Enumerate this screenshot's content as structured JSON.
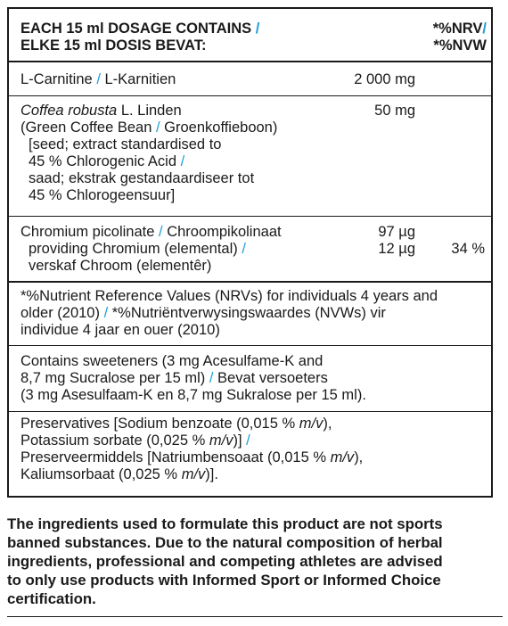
{
  "header": {
    "line1": "EACH 15 ml DOSAGE CONTAINS",
    "line2": "ELKE 15 ml DOSIS BEVAT:",
    "nrv": "*%NRV",
    "nvw": "*%NVW",
    "slash": "/"
  },
  "carnitine": {
    "en": "L-Carnitine",
    "af": "L-Karnitien",
    "amount": "2 000 mg"
  },
  "coffee": {
    "name_italic": "Coffea robusta",
    "name_rest": " L. Linden",
    "line2_en": "(Green Coffee Bean",
    "line2_af": "Groenkoffieboon)",
    "line3": "[seed; extract standardised to",
    "line4": "45 % Chlorogenic Acid",
    "line5": "saad; ekstrak gestandaardiseer tot",
    "line6": "45 % Chlorogeensuur]",
    "amount": "50 mg"
  },
  "chromium": {
    "line1_en": "Chromium picolinate",
    "line1_af": "Chroompikolinaat",
    "line2": "providing Chromium (elemental)",
    "line3": "verskaf Chroom (elementêr)",
    "amount1": "97 µg",
    "amount2": "12 µg",
    "nrv": "34 %"
  },
  "nrv_note": {
    "line1": "*%Nutrient Reference Values (NRVs) for individuals 4 years and",
    "line2": "older (2010)",
    "line2_af": "*%Nutriëntverwysingswaardes (NVWs) vir",
    "line3": "individue 4 jaar en ouer (2010)"
  },
  "sweeteners": {
    "line1": "Contains sweeteners (3 mg Acesulfame-K and",
    "line2": "8,7 mg Sucralose per 15 ml)",
    "line2_af": "Bevat versoeters",
    "line3": "(3 mg Asesulfaam-K en 8,7 mg Sukralose per 15 ml)."
  },
  "preservatives": {
    "line1a": "Preservatives [Sodium benzoate (0,015 %",
    "line1b": "m/v",
    "line1c": "),",
    "line2a": "Potassium sorbate (0,025 %",
    "line2b": "m/v",
    "line2c": ")]",
    "line3a": "Preserveermiddels [Natriumbensoaat (0,015 %",
    "line3b": "m/v",
    "line3c": "),",
    "line4a": "Kaliumsorbaat (0,025 %",
    "line4b": "m/v",
    "line4c": ")]."
  },
  "bottom_note": {
    "line1": "The ingredients used to formulate this product are not sports",
    "line2": "banned substances. Due to the natural composition of herbal",
    "line3": "ingredients, professional and competing athletes are advised",
    "line4": "to only use products with Informed Sport or Informed Choice",
    "line5": "certification."
  },
  "colors": {
    "slash": "#1ba0d8",
    "text": "#1a1a1a"
  }
}
